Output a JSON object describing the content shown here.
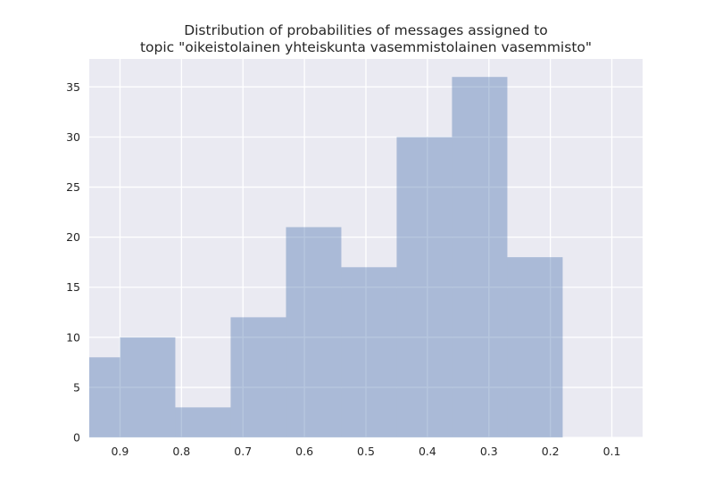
{
  "chart_data": {
    "type": "bar",
    "title_lines": [
      "Distribution of probabilities of messages assigned to",
      "topic \"oikeistolainen yhteiskunta vasemmistolainen vasemmisto\""
    ],
    "xlabel": "",
    "ylabel": "",
    "x_inverted": true,
    "xlim": [
      0.95,
      0.05
    ],
    "ylim": [
      0,
      37.8
    ],
    "x_ticks": [
      0.9,
      0.8,
      0.7,
      0.6,
      0.5,
      0.4,
      0.3,
      0.2,
      0.1
    ],
    "x_tick_labels": [
      "0.9",
      "0.8",
      "0.7",
      "0.6",
      "0.5",
      "0.4",
      "0.3",
      "0.2",
      "0.1"
    ],
    "y_ticks": [
      0,
      5,
      10,
      15,
      20,
      25,
      30,
      35
    ],
    "y_tick_labels": [
      "0",
      "5",
      "10",
      "15",
      "20",
      "25",
      "30",
      "35"
    ],
    "grid": true,
    "bins": [
      {
        "x_start": 0.95,
        "x_end": 0.9,
        "count": 8
      },
      {
        "x_start": 0.9,
        "x_end": 0.81,
        "count": 10
      },
      {
        "x_start": 0.81,
        "x_end": 0.72,
        "count": 3
      },
      {
        "x_start": 0.72,
        "x_end": 0.63,
        "count": 12
      },
      {
        "x_start": 0.63,
        "x_end": 0.54,
        "count": 21
      },
      {
        "x_start": 0.54,
        "x_end": 0.45,
        "count": 17
      },
      {
        "x_start": 0.45,
        "x_end": 0.36,
        "count": 30
      },
      {
        "x_start": 0.36,
        "x_end": 0.27,
        "count": 36
      },
      {
        "x_start": 0.27,
        "x_end": 0.18,
        "count": 18
      }
    ],
    "colors": {
      "background": "#eaeaf2",
      "grid": "#ffffff",
      "bar": "#4c72b0",
      "bar_alpha": 0.4,
      "text": "#262626"
    }
  }
}
